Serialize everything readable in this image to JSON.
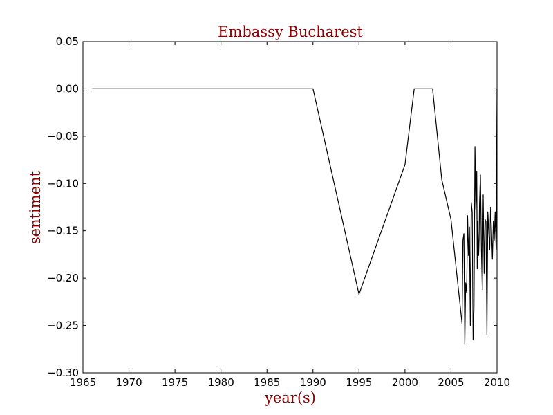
{
  "chart_data": {
    "type": "line",
    "title": "Embassy Bucharest",
    "xlabel": "year(s)",
    "ylabel": "sentiment",
    "xlim": [
      1965,
      2010
    ],
    "ylim": [
      -0.3,
      0.05
    ],
    "xticks": [
      1965,
      1970,
      1975,
      1980,
      1985,
      1990,
      1995,
      2000,
      2005,
      2010
    ],
    "xtick_labels": [
      "1965",
      "1970",
      "1975",
      "1980",
      "1985",
      "1990",
      "1995",
      "2000",
      "2005",
      "2010"
    ],
    "yticks": [
      0.05,
      0.0,
      -0.05,
      -0.1,
      -0.15,
      -0.2,
      -0.25,
      -0.3
    ],
    "ytick_labels": [
      "0.05",
      "0.00",
      "−0.05",
      "−0.10",
      "−0.15",
      "−0.20",
      "−0.25",
      "−0.30"
    ],
    "grid": false,
    "line_color": "#000000",
    "label_color": "#8b0000",
    "series": [
      {
        "x": [
          1966.0,
          1990.0,
          1995.0,
          2000.0,
          2001.0,
          2003.0,
          2004.0,
          2005.0,
          2006.2,
          2006.3,
          2006.4,
          2006.5,
          2006.6,
          2006.7,
          2006.8,
          2006.9,
          2007.0,
          2007.1,
          2007.2,
          2007.3,
          2007.4,
          2007.5,
          2007.6,
          2007.7,
          2007.8,
          2007.85,
          2007.9,
          2008.0,
          2008.05,
          2008.1,
          2008.2,
          2008.3,
          2008.4,
          2008.5,
          2008.6,
          2008.7,
          2008.8,
          2008.9,
          2009.0,
          2009.1,
          2009.2,
          2009.3,
          2009.4,
          2009.5,
          2009.6,
          2009.7,
          2009.8,
          2009.9,
          2010.0
        ],
        "y": [
          0.0,
          0.0,
          -0.217,
          -0.08,
          0.0,
          0.0,
          -0.096,
          -0.138,
          -0.248,
          -0.16,
          -0.153,
          -0.27,
          -0.205,
          -0.215,
          -0.134,
          -0.176,
          -0.146,
          -0.25,
          -0.12,
          -0.13,
          -0.265,
          -0.23,
          -0.061,
          -0.127,
          -0.087,
          -0.19,
          -0.14,
          -0.176,
          -0.16,
          -0.12,
          -0.091,
          -0.17,
          -0.212,
          -0.112,
          -0.195,
          -0.138,
          -0.14,
          -0.26,
          -0.13,
          -0.15,
          -0.17,
          -0.125,
          -0.15,
          -0.18,
          -0.14,
          -0.16,
          -0.13,
          -0.17,
          0.0
        ]
      }
    ]
  }
}
